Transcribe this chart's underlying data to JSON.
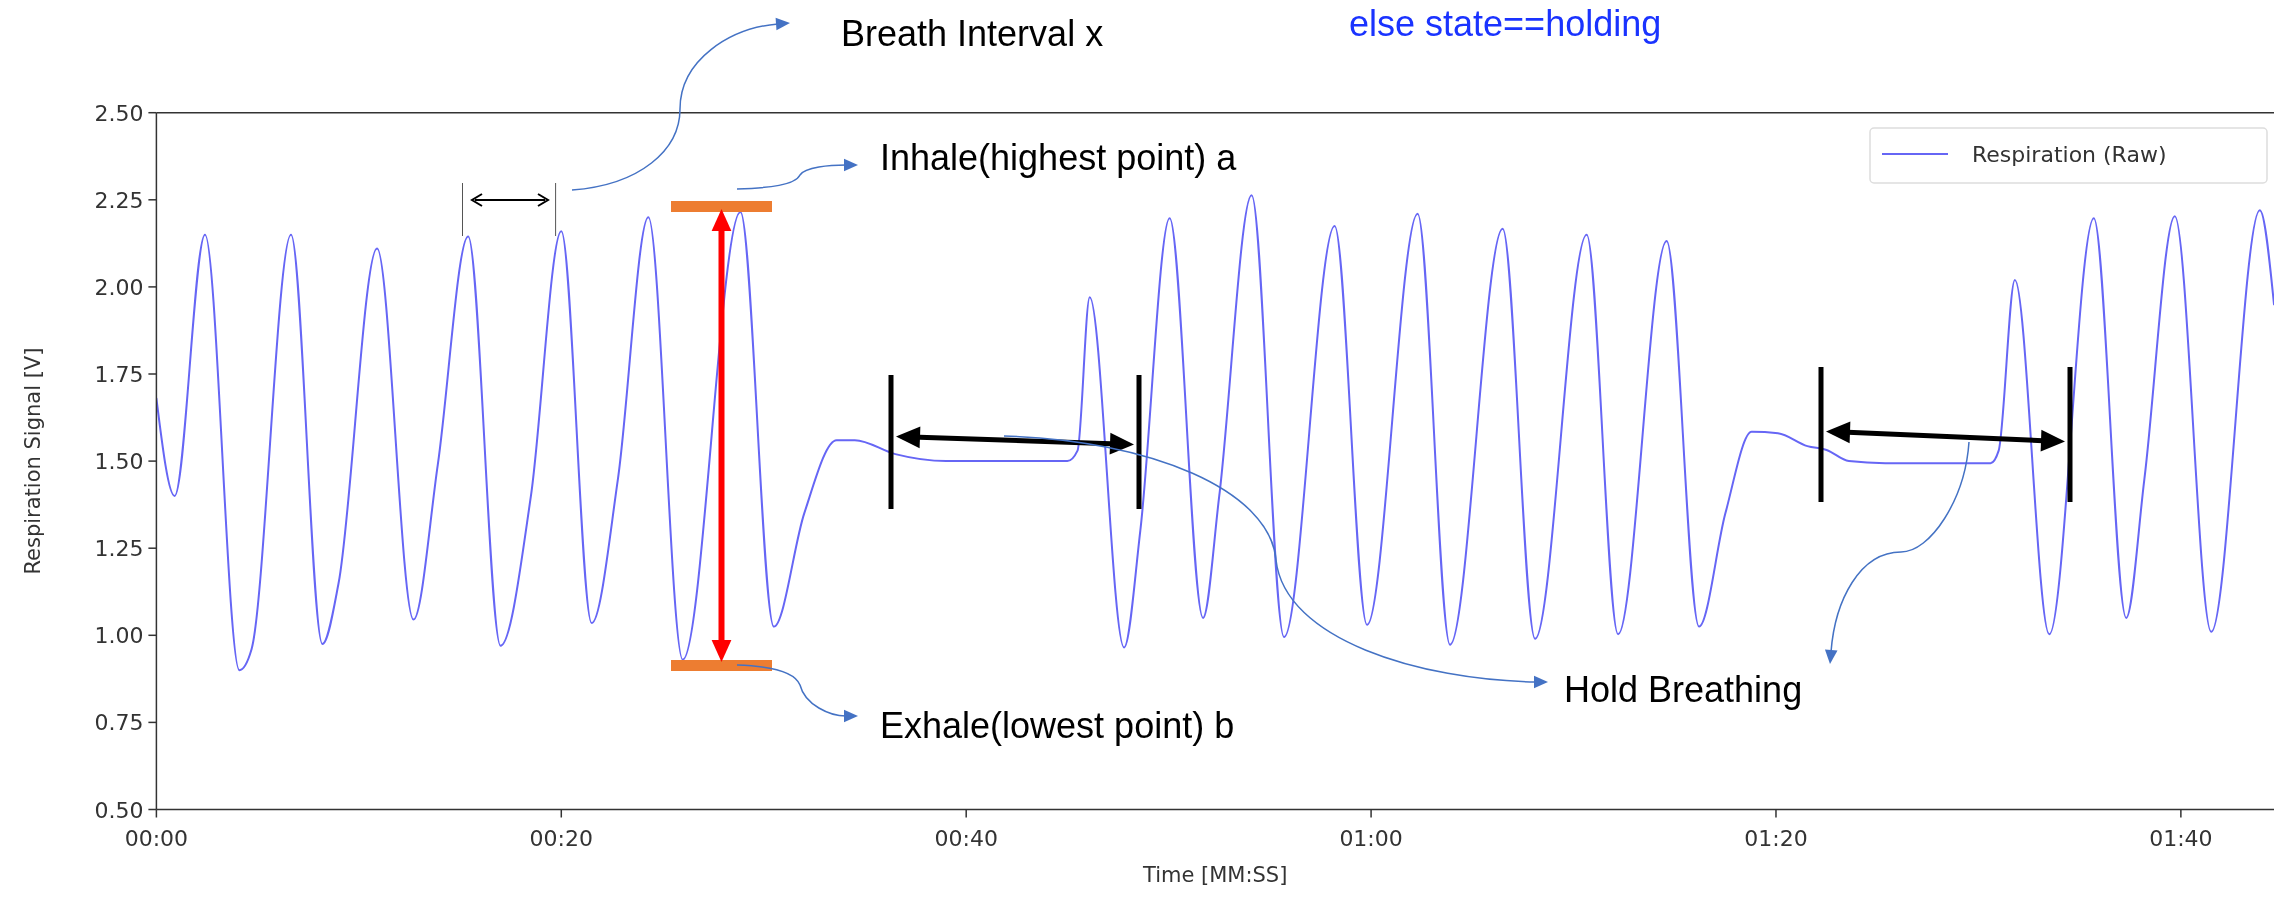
{
  "chart_data": {
    "type": "line",
    "xlabel": "Time [MM:SS]",
    "ylabel": "Respiration Signal [V]",
    "xlim": [
      0,
      104.6
    ],
    "ylim": [
      0.5,
      2.5
    ],
    "xticks": [
      {
        "value": 0,
        "label": "00:00"
      },
      {
        "value": 20,
        "label": "00:20"
      },
      {
        "value": 40,
        "label": "00:40"
      },
      {
        "value": 60,
        "label": "01:00"
      },
      {
        "value": 80,
        "label": "01:20"
      },
      {
        "value": 100,
        "label": "01:40"
      }
    ],
    "yticks": [
      {
        "value": 0.5,
        "label": "0.50"
      },
      {
        "value": 0.75,
        "label": "0.75"
      },
      {
        "value": 1,
        "label": "1.00"
      },
      {
        "value": 1.25,
        "label": "1.25"
      },
      {
        "value": 1.5,
        "label": "1.50"
      },
      {
        "value": 1.75,
        "label": "1.75"
      },
      {
        "value": 2,
        "label": "2.00"
      },
      {
        "value": 2.25,
        "label": "2.25"
      },
      {
        "value": 2.5,
        "label": "2.50"
      }
    ],
    "grid": false,
    "legend": "top right",
    "marker": "none",
    "line_style": "solid",
    "annotations": [
      "Breath Interval x",
      "else state==holding",
      "Inhale(highest point) a",
      "Exhale(lowest point) b",
      "Hold Breathing"
    ],
    "series": [
      {
        "name": "Respiration (Raw)",
        "color": "#6666f5",
        "x": [
          0,
          0.9,
          2.4,
          4.1,
          4.7,
          6.65,
          8.2,
          9.0,
          10.9,
          12.7,
          13.9,
          15.4,
          17.0,
          18.5,
          20.0,
          21.5,
          22.8,
          24.3,
          26.0,
          28.85,
          30.5,
          32.0,
          33.6,
          34.5,
          36.5,
          39,
          42,
          45,
          45.5,
          46.1,
          47.8,
          48.6,
          50.05,
          51.7,
          52.5,
          54.1,
          55.7,
          58.2,
          59.8,
          62.3,
          63.9,
          66.5,
          68.1,
          70.65,
          72.2,
          74.6,
          76.2,
          77.5,
          78.8,
          80.1,
          81.55,
          82.5,
          83.6,
          85.4,
          90.6,
          91.0,
          91.8,
          93.5,
          95.7,
          97.3,
          98.2,
          99.7,
          101.5,
          103.9,
          104.6
        ],
        "values": [
          1.68,
          1.4,
          2.15,
          0.9,
          0.96,
          2.15,
          0.975,
          1.15,
          2.11,
          1.045,
          1.49,
          2.145,
          0.97,
          1.4,
          2.16,
          1.035,
          1.45,
          2.2,
          0.93,
          2.215,
          1.025,
          1.35,
          1.56,
          1.56,
          1.52,
          1.5,
          1.5,
          1.5,
          1.53,
          1.97,
          0.965,
          1.3,
          2.197,
          1.05,
          1.4,
          2.263,
          0.995,
          2.175,
          1.03,
          2.21,
          0.973,
          2.167,
          0.99,
          2.15,
          1.003,
          2.132,
          1.025,
          1.35,
          1.584,
          1.58,
          1.543,
          1.532,
          1.5,
          1.494,
          1.494,
          1.53,
          2.02,
          1.003,
          2.197,
          1.05,
          1.45,
          2.203,
          1.01,
          2.22,
          1.95
        ]
      }
    ]
  }
}
